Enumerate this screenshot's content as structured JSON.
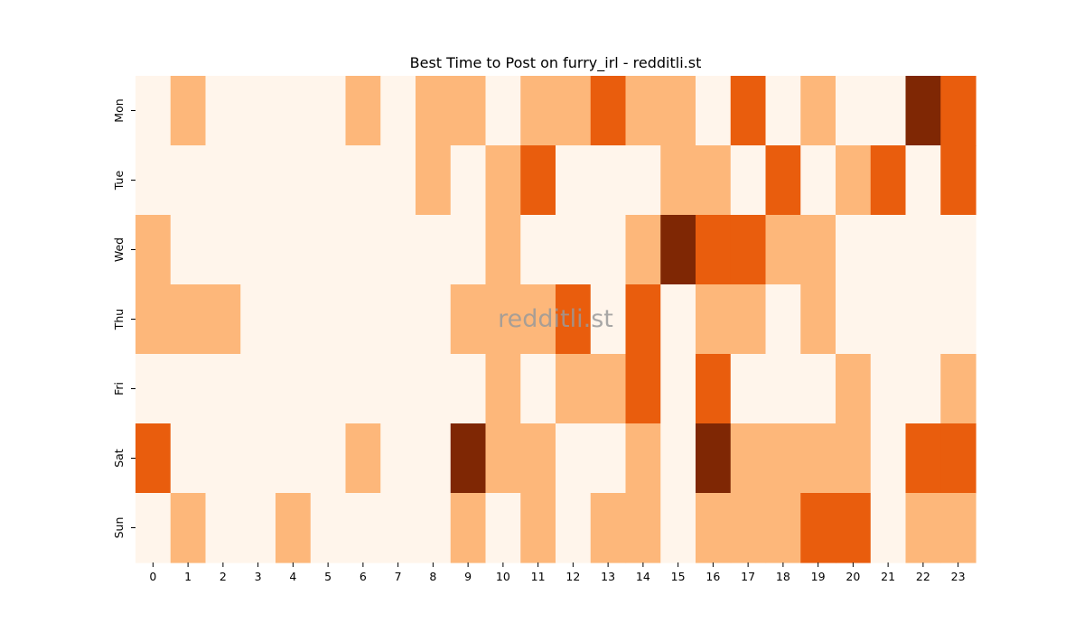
{
  "chart_data": {
    "type": "heatmap",
    "title": "Best Time to Post on furry_irl - redditli.st",
    "watermark": "redditli.st",
    "xlabel": "",
    "ylabel": "",
    "x_categories": [
      "0",
      "1",
      "2",
      "3",
      "4",
      "5",
      "6",
      "7",
      "8",
      "9",
      "10",
      "11",
      "12",
      "13",
      "14",
      "15",
      "16",
      "17",
      "18",
      "19",
      "20",
      "21",
      "22",
      "23"
    ],
    "y_categories": [
      "Mon",
      "Tue",
      "Wed",
      "Thu",
      "Fri",
      "Sat",
      "Sun"
    ],
    "values": [
      [
        0,
        1,
        0,
        0,
        0,
        0,
        1,
        0,
        1,
        1,
        0,
        1,
        1,
        2,
        1,
        1,
        0,
        2,
        0,
        1,
        0,
        0,
        3,
        2
      ],
      [
        0,
        0,
        0,
        0,
        0,
        0,
        0,
        0,
        1,
        0,
        1,
        2,
        0,
        0,
        0,
        1,
        1,
        0,
        2,
        0,
        1,
        2,
        0,
        2
      ],
      [
        1,
        0,
        0,
        0,
        0,
        0,
        0,
        0,
        0,
        0,
        1,
        0,
        0,
        0,
        1,
        3,
        2,
        2,
        1,
        1,
        0,
        0,
        0,
        0
      ],
      [
        1,
        1,
        1,
        0,
        0,
        0,
        0,
        0,
        0,
        1,
        1,
        1,
        2,
        0,
        2,
        0,
        1,
        1,
        0,
        1,
        0,
        0,
        0,
        0
      ],
      [
        0,
        0,
        0,
        0,
        0,
        0,
        0,
        0,
        0,
        0,
        1,
        0,
        1,
        1,
        2,
        0,
        2,
        0,
        0,
        0,
        1,
        0,
        0,
        1
      ],
      [
        2,
        0,
        0,
        0,
        0,
        0,
        1,
        0,
        0,
        3,
        1,
        1,
        0,
        0,
        1,
        0,
        3,
        1,
        1,
        1,
        1,
        0,
        2,
        2
      ],
      [
        0,
        1,
        0,
        0,
        1,
        0,
        0,
        0,
        0,
        1,
        0,
        1,
        0,
        1,
        1,
        0,
        1,
        1,
        1,
        2,
        2,
        0,
        1,
        1
      ]
    ],
    "value_range": [
      0,
      3
    ],
    "colormap": "Oranges",
    "level_colors": [
      "#fff5eb",
      "#fdb77a",
      "#e95d0d",
      "#7f2704"
    ],
    "colorbar": false,
    "grid": false
  }
}
